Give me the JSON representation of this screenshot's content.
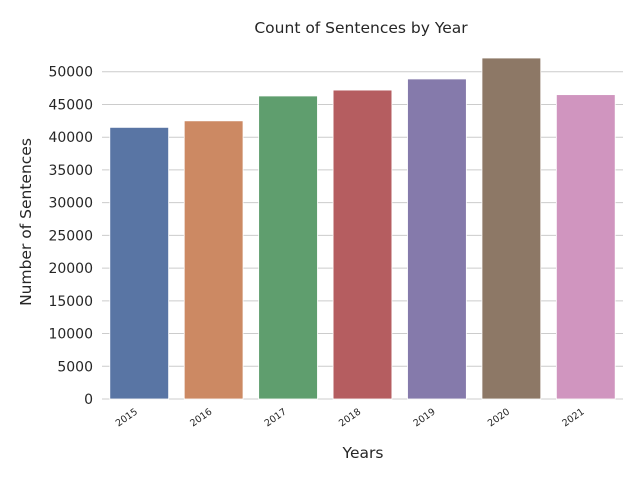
{
  "chart_data": {
    "type": "bar",
    "title": "Count of Sentences by Year",
    "xlabel": "Years",
    "ylabel": "Number of Sentences",
    "categories": [
      "2015",
      "2016",
      "2017",
      "2018",
      "2019",
      "2020",
      "2021"
    ],
    "values": [
      41500,
      42500,
      46300,
      47200,
      48900,
      52100,
      46500
    ],
    "colors": [
      "#5975a4",
      "#cc8963",
      "#5f9e6e",
      "#b55d60",
      "#857aab",
      "#8d7866",
      "#d095bf"
    ],
    "ylim": [
      0,
      52100
    ],
    "yticks": [
      0,
      5000,
      10000,
      15000,
      20000,
      25000,
      30000,
      35000,
      40000,
      45000,
      50000
    ],
    "grid": true,
    "legend": "none"
  }
}
